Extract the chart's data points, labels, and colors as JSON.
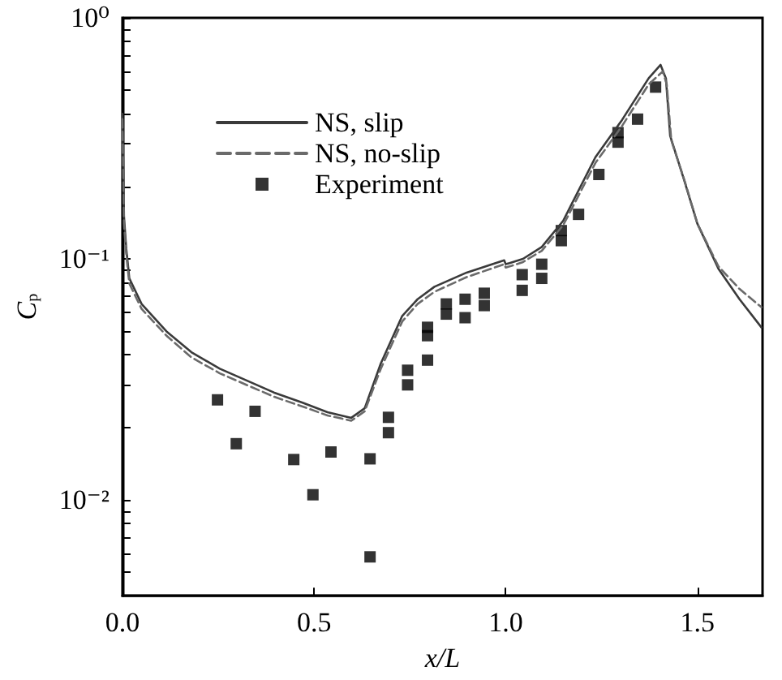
{
  "chart_data": {
    "type": "line",
    "xlabel": "x/L",
    "ylabel": "C$_{p}$",
    "log": "y",
    "grid": false,
    "legend": "top left",
    "xlim": [
      0,
      1.67
    ],
    "xticks": [
      {
        "value": 0,
        "label": "0.0"
      },
      {
        "value": 0.5,
        "label": "0.5"
      },
      {
        "value": 1,
        "label": "1.0"
      },
      {
        "value": 1.5,
        "label": "1.5"
      }
    ],
    "ylim": [
      0.004,
      1
    ],
    "yticks": [
      {
        "value": 0.005,
        "label": null
      },
      {
        "value": 0.006,
        "label": null
      },
      {
        "value": 0.007,
        "label": null
      },
      {
        "value": 0.008,
        "label": null
      },
      {
        "value": 0.009,
        "label": null
      },
      {
        "value": 0.01,
        "label": "10⁻²"
      },
      {
        "value": 0.02,
        "label": null
      },
      {
        "value": 0.03,
        "label": null
      },
      {
        "value": 0.04,
        "label": null
      },
      {
        "value": 0.05,
        "label": null
      },
      {
        "value": 0.06,
        "label": null
      },
      {
        "value": 0.07,
        "label": null
      },
      {
        "value": 0.08,
        "label": null
      },
      {
        "value": 0.09,
        "label": null
      },
      {
        "value": 0.1,
        "label": "10⁻¹"
      },
      {
        "value": 0.2,
        "label": null
      },
      {
        "value": 0.3,
        "label": null
      },
      {
        "value": 0.4,
        "label": null
      },
      {
        "value": 0.5,
        "label": null
      },
      {
        "value": 0.6,
        "label": null
      },
      {
        "value": 0.7,
        "label": null
      },
      {
        "value": 0.8,
        "label": null
      },
      {
        "value": 0.9,
        "label": null
      },
      {
        "value": 1,
        "label": "10⁰"
      }
    ],
    "series": [
      {
        "name": "NS, slip",
        "line_style": "solid",
        "marker": "none",
        "color": "#3a3a3a",
        "x": [
          0,
          0.004,
          0.01,
          0.018,
          0.05,
          0.115,
          0.18,
          0.254,
          0.33,
          0.395,
          0.47,
          0.535,
          0.597,
          0.632,
          0.674,
          0.73,
          0.77,
          0.814,
          0.898,
          0.996,
          1.0,
          1.01,
          1.045,
          1.094,
          1.15,
          1.234,
          1.303,
          1.373,
          1.404,
          1.418,
          1.429,
          1.464,
          1.5,
          1.555,
          1.61,
          1.667
        ],
        "values": [
          0.4,
          0.15,
          0.11,
          0.083,
          0.065,
          0.05,
          0.041,
          0.035,
          0.031,
          0.0279,
          0.0253,
          0.0231,
          0.0219,
          0.024,
          0.0368,
          0.058,
          0.068,
          0.0766,
          0.0877,
          0.0986,
          0.095,
          0.096,
          0.1,
          0.112,
          0.144,
          0.264,
          0.376,
          0.562,
          0.638,
          0.56,
          0.324,
          0.216,
          0.14,
          0.091,
          0.068,
          0.052
        ]
      },
      {
        "name": "NS, no-slip",
        "line_style": "dashed",
        "marker": "none",
        "color": "#6a6a6a",
        "x": [
          0,
          0.004,
          0.01,
          0.018,
          0.05,
          0.115,
          0.18,
          0.254,
          0.33,
          0.395,
          0.47,
          0.535,
          0.597,
          0.632,
          0.674,
          0.73,
          0.77,
          0.814,
          0.898,
          0.996,
          1.0,
          1.01,
          1.045,
          1.094,
          1.15,
          1.234,
          1.303,
          1.373,
          1.41,
          1.42,
          1.432,
          1.467,
          1.5,
          1.555,
          1.61,
          1.667
        ],
        "values": [
          0.38,
          0.14,
          0.104,
          0.079,
          0.062,
          0.048,
          0.039,
          0.0335,
          0.0297,
          0.0268,
          0.0244,
          0.0224,
          0.0213,
          0.0233,
          0.035,
          0.055,
          0.065,
          0.073,
          0.084,
          0.095,
          0.092,
          0.093,
          0.097,
          0.108,
          0.138,
          0.25,
          0.355,
          0.53,
          0.6,
          0.53,
          0.31,
          0.21,
          0.14,
          0.093,
          0.075,
          0.063
        ]
      },
      {
        "name": "Experiment",
        "type": "scatter",
        "marker": "square",
        "color": "#000000",
        "x": [
          0.248,
          0.297,
          0.346,
          0.447,
          0.497,
          0.544,
          0.646,
          0.646,
          0.694,
          0.694,
          0.744,
          0.744,
          0.796,
          0.796,
          0.796,
          0.845,
          0.845,
          0.894,
          0.894,
          0.944,
          0.944,
          1.043,
          1.043,
          1.094,
          1.094,
          1.145,
          1.145,
          1.19,
          1.243,
          1.293,
          1.293,
          1.344,
          1.391
        ],
        "values": [
          0.026,
          0.0171,
          0.0233,
          0.0147,
          0.0105,
          0.0158,
          0.0148,
          0.0058,
          0.022,
          0.019,
          0.0345,
          0.03,
          0.052,
          0.048,
          0.038,
          0.065,
          0.059,
          0.068,
          0.057,
          0.072,
          0.064,
          0.086,
          0.074,
          0.095,
          0.083,
          0.131,
          0.119,
          0.153,
          0.224,
          0.334,
          0.305,
          0.38,
          0.516
        ]
      }
    ]
  }
}
